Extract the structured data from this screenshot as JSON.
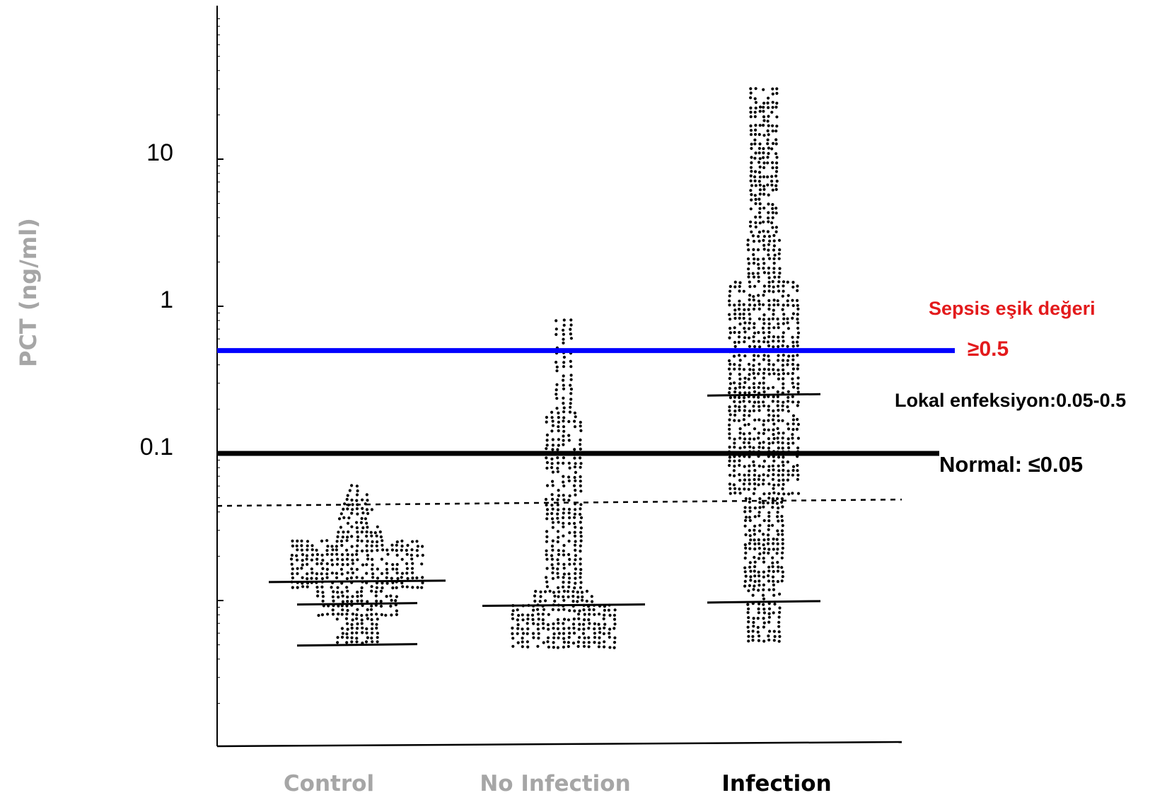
{
  "chart_data": {
    "type": "scatter",
    "scale": "log",
    "ylabel": "PCT (ng/ml)",
    "yticks": [
      {
        "value": 10,
        "label": "10"
      },
      {
        "value": 1,
        "label": "1"
      },
      {
        "value": 0.1,
        "label": "0.1"
      }
    ],
    "ylim": [
      0.003,
      120
    ],
    "categories": [
      "Control",
      "No Infection",
      "Infection"
    ],
    "category_colors": [
      "#a6a6a6",
      "#a6a6a6",
      "#000000"
    ],
    "series": [
      {
        "category": "Control",
        "min": 0.005,
        "max": 0.06,
        "dense_low": 0.006,
        "dense_high": 0.026,
        "quartile_lines": [
          0.005,
          0.0095,
          0.0135
        ]
      },
      {
        "category": "No Infection",
        "min": 0.0048,
        "max": 0.8,
        "dense_low": 0.005,
        "dense_high": 0.009,
        "quartile_lines": [
          0.0093
        ]
      },
      {
        "category": "Infection",
        "min": 0.005,
        "max": 30,
        "dense_low": 0.06,
        "dense_high": 2.5,
        "quartile_lines": [
          0.0098,
          0.25
        ]
      }
    ],
    "reference_lines": [
      {
        "value": 0.5,
        "color": "#0000ff",
        "style": "solid"
      },
      {
        "value": 0.1,
        "color": "#000000",
        "style": "solid"
      },
      {
        "value": 0.047,
        "color": "#000000",
        "style": "dashed"
      }
    ],
    "annotations": [
      {
        "text": "Sepsis eşik değeri",
        "color": "#e31a1c"
      },
      {
        "text": "≥0.5",
        "color": "#e31a1c"
      },
      {
        "text": "Lokal enfeksiyon:0.05-0.5",
        "color": "#000000"
      },
      {
        "text": "Normal: ≤0.05",
        "color": "#000000"
      }
    ]
  }
}
